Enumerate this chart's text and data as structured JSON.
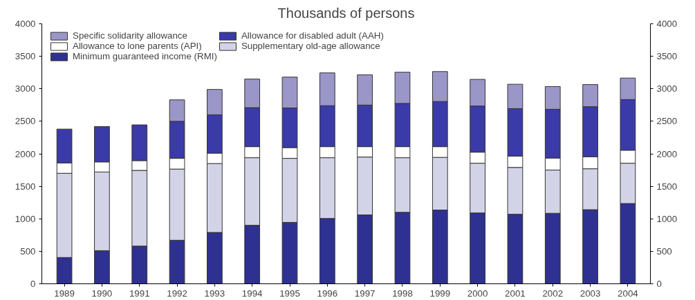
{
  "chart_data": {
    "type": "bar",
    "title": "Thousands of persons",
    "stacked": true,
    "categories": [
      "1989",
      "1990",
      "1991",
      "1992",
      "1993",
      "1994",
      "1995",
      "1996",
      "1997",
      "1998",
      "1999",
      "2000",
      "2001",
      "2002",
      "2003",
      "2004"
    ],
    "series": [
      {
        "name": "Minimum guaranteed income (RMI)",
        "color": "#2e3192",
        "values": [
          405,
          510,
          580,
          670,
          790,
          900,
          945,
          1005,
          1060,
          1100,
          1135,
          1090,
          1070,
          1085,
          1140,
          1235
        ]
      },
      {
        "name": "Supplementary old-age allowance",
        "color": "#d3d3e8",
        "values": [
          1295,
          1210,
          1165,
          1095,
          1060,
          1040,
          985,
          935,
          890,
          840,
          810,
          765,
          720,
          665,
          630,
          620
        ]
      },
      {
        "name": "Allowance to lone parents (API)",
        "color": "#ffffff",
        "values": [
          160,
          155,
          150,
          165,
          160,
          170,
          165,
          170,
          160,
          170,
          165,
          170,
          175,
          185,
          185,
          200
        ]
      },
      {
        "name": "Allowance for disabled adult (AAH)",
        "color": "#3a3aa8",
        "values": [
          520,
          545,
          550,
          570,
          590,
          600,
          610,
          630,
          640,
          665,
          695,
          710,
          730,
          750,
          770,
          780
        ]
      },
      {
        "name": "Specific solidarity allowance",
        "color": "#9b96c8",
        "values": [
          null,
          null,
          null,
          330,
          390,
          440,
          475,
          505,
          465,
          480,
          460,
          410,
          375,
          350,
          340,
          330
        ]
      }
    ],
    "ylim": [
      0,
      4000
    ],
    "yticks": [
      0,
      500,
      1000,
      1500,
      2000,
      2500,
      3000,
      3500,
      4000
    ],
    "y2lim": [
      0,
      4000
    ],
    "y2ticks": [
      0,
      500,
      1000,
      1500,
      2000,
      2500,
      3000,
      3500,
      4000
    ],
    "grid": false,
    "legend": "top left"
  }
}
